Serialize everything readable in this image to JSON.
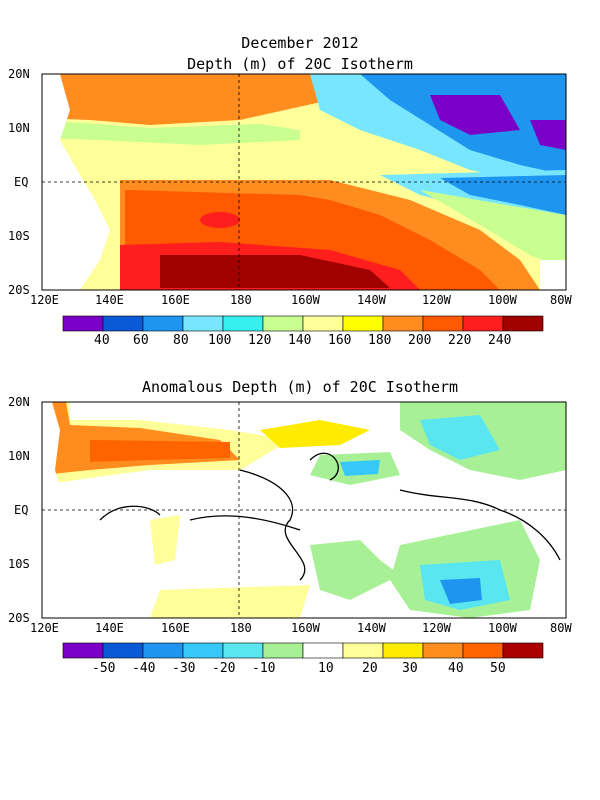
{
  "panels": [
    {
      "id": "top",
      "title_line1": "December 2012",
      "title_line2": "Depth (m) of 20C Isotherm",
      "lon_ticks": [
        "120E",
        "140E",
        "160E",
        "180",
        "160W",
        "140W",
        "120W",
        "100W",
        "80W"
      ],
      "lat_ticks": [
        "20N",
        "10N",
        "EQ",
        "10S",
        "20S"
      ],
      "colorbar_labels": [
        "40",
        "60",
        "80",
        "100",
        "120",
        "140",
        "160",
        "180",
        "200",
        "220",
        "240"
      ],
      "colors": [
        "#7a00c8",
        "#0a5ad8",
        "#1e96f0",
        "#78e6ff",
        "#36f0f0",
        "#c8ff90",
        "#ffff9a",
        "#ffff00",
        "#ff8c1e",
        "#ff5a00",
        "#ff1e1e",
        "#a00000"
      ]
    },
    {
      "id": "bottom",
      "title_line1": "Anomalous Depth (m) of 20C Isotherm",
      "lon_ticks": [
        "120E",
        "140E",
        "160E",
        "180",
        "160W",
        "140W",
        "120W",
        "100W",
        "80W"
      ],
      "lat_ticks": [
        "20N",
        "10N",
        "EQ",
        "10S",
        "20S"
      ],
      "colorbar_labels": [
        "-50",
        "-40",
        "-30",
        "-20",
        "-10",
        "10",
        "20",
        "30",
        "40",
        "50"
      ],
      "colors": [
        "#7a00c8",
        "#0a5ad8",
        "#1e96f0",
        "#36c8f8",
        "#5ae6f0",
        "#a8f096",
        "#ffffff",
        "#ffff9a",
        "#ffeb00",
        "#ff8c1e",
        "#ff6400",
        "#aa0000"
      ]
    }
  ]
}
